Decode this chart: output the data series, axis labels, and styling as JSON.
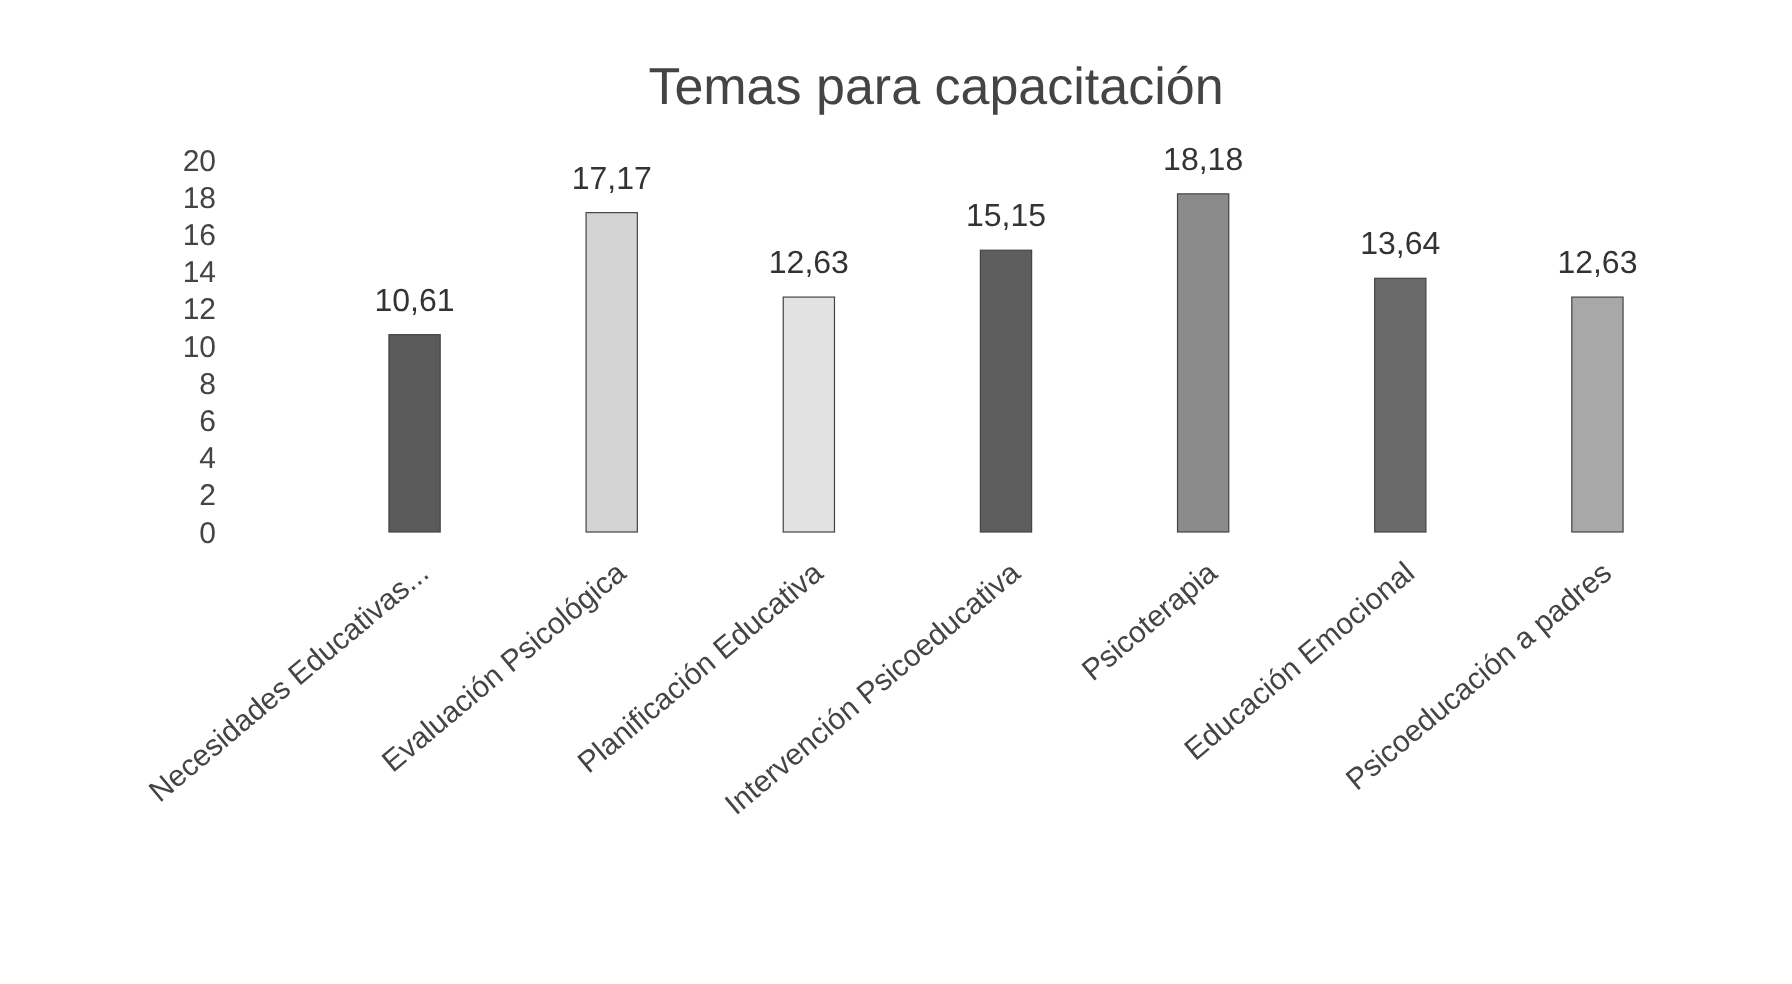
{
  "chart_data": {
    "type": "bar",
    "title": "Temas para capacitación",
    "categories": [
      "Necesidades Educativas...",
      "Evaluación Psicológica",
      "Planificación Educativa",
      "Intervención Psicoeducativa",
      "Psicoterapia",
      "Educación Emocional",
      "Psicoeducación a padres"
    ],
    "values": [
      10.61,
      17.17,
      12.63,
      15.15,
      18.18,
      13.64,
      12.63
    ],
    "value_labels": [
      "10,61",
      "17,17",
      "12,63",
      "15,15",
      "18,18",
      "13,64",
      "12,63"
    ],
    "colors": [
      "#5a5a5a",
      "#d4d4d4",
      "#e2e2e2",
      "#5e5e5e",
      "#8a8a8a",
      "#6a6a6a",
      "#a8a8a8"
    ],
    "ylim": [
      0,
      20
    ],
    "yticks": [
      0,
      2,
      4,
      6,
      8,
      10,
      12,
      14,
      16,
      18,
      20
    ],
    "grid": false
  }
}
